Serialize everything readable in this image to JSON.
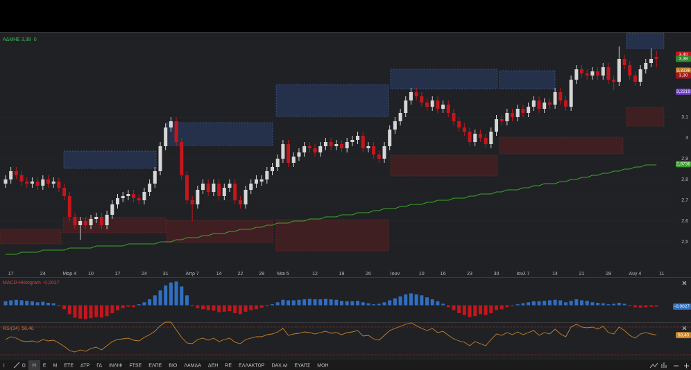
{
  "header": {
    "symbol_label": "ΑΔΜΗΕ 3,38 ·0"
  },
  "chart_data": [
    {
      "type": "candlestick",
      "categories": [
        null,
        "17",
        null,
        null,
        null,
        null,
        null,
        "24",
        null,
        null,
        null,
        null,
        "Μαρ 4",
        null,
        null,
        null,
        "10",
        null,
        null,
        null,
        null,
        "17",
        null,
        null,
        null,
        null,
        "24",
        null,
        null,
        null,
        "31",
        null,
        null,
        null,
        null,
        "Απρ 7",
        null,
        null,
        null,
        null,
        "14",
        null,
        null,
        null,
        "22",
        null,
        null,
        null,
        "28",
        null,
        null,
        null,
        "Μαι 5",
        null,
        null,
        null,
        null,
        null,
        "12",
        null,
        null,
        null,
        null,
        "19",
        null,
        null,
        null,
        null,
        "26",
        null,
        null,
        null,
        null,
        "Ιουν",
        null,
        null,
        null,
        null,
        "10",
        null,
        null,
        null,
        "16",
        null,
        null,
        null,
        null,
        "23",
        null,
        null,
        null,
        null,
        "30",
        null,
        null,
        null,
        null,
        "Ιουλ 7",
        null,
        null,
        null,
        null,
        null,
        "14",
        null,
        null,
        null,
        null,
        "21",
        null,
        null,
        null,
        null,
        "28",
        null,
        null,
        null,
        null,
        "Αυγ 4",
        null,
        null,
        null,
        null,
        "11"
      ],
      "candles": [
        [
          2.78,
          2.82,
          2.76,
          2.8
        ],
        [
          2.8,
          2.86,
          2.78,
          2.84
        ],
        [
          2.84,
          2.86,
          2.8,
          2.82
        ],
        [
          2.82,
          2.84,
          2.77,
          2.79
        ],
        [
          2.79,
          2.81,
          2.76,
          2.78
        ],
        [
          2.78,
          2.81,
          2.76,
          2.79
        ],
        [
          2.79,
          2.81,
          2.75,
          2.77
        ],
        [
          2.77,
          2.82,
          2.75,
          2.8
        ],
        [
          2.8,
          2.82,
          2.76,
          2.78
        ],
        [
          2.78,
          2.81,
          2.76,
          2.79
        ],
        [
          2.79,
          2.81,
          2.74,
          2.76
        ],
        [
          2.76,
          2.78,
          2.7,
          2.72
        ],
        [
          2.72,
          2.74,
          2.6,
          2.62
        ],
        [
          2.62,
          2.64,
          2.56,
          2.58
        ],
        [
          2.58,
          2.62,
          2.51,
          2.6
        ],
        [
          2.6,
          2.62,
          2.56,
          2.58
        ],
        [
          2.58,
          2.63,
          2.56,
          2.61
        ],
        [
          2.61,
          2.64,
          2.59,
          2.62
        ],
        [
          2.62,
          2.64,
          2.56,
          2.58
        ],
        [
          2.58,
          2.65,
          2.56,
          2.63
        ],
        [
          2.63,
          2.7,
          2.61,
          2.68
        ],
        [
          2.68,
          2.73,
          2.66,
          2.71
        ],
        [
          2.71,
          2.74,
          2.69,
          2.72
        ],
        [
          2.72,
          2.75,
          2.7,
          2.73
        ],
        [
          2.73,
          2.75,
          2.69,
          2.71
        ],
        [
          2.71,
          2.73,
          2.68,
          2.7
        ],
        [
          2.7,
          2.76,
          2.68,
          2.74
        ],
        [
          2.74,
          2.8,
          2.72,
          2.78
        ],
        [
          2.78,
          2.86,
          2.76,
          2.84
        ],
        [
          2.84,
          2.98,
          2.82,
          2.96
        ],
        [
          2.96,
          3.07,
          2.94,
          3.05
        ],
        [
          3.05,
          3.1,
          3.03,
          3.08
        ],
        [
          3.08,
          3.1,
          2.96,
          2.98
        ],
        [
          2.98,
          3.0,
          2.8,
          2.82
        ],
        [
          2.82,
          2.84,
          2.68,
          2.7
        ],
        [
          2.7,
          2.72,
          2.6,
          2.68
        ],
        [
          2.68,
          2.77,
          2.66,
          2.75
        ],
        [
          2.75,
          2.8,
          2.73,
          2.78
        ],
        [
          2.78,
          2.8,
          2.72,
          2.74
        ],
        [
          2.74,
          2.8,
          2.72,
          2.78
        ],
        [
          2.78,
          2.8,
          2.7,
          2.72
        ],
        [
          2.72,
          2.78,
          2.7,
          2.76
        ],
        [
          2.76,
          2.8,
          2.74,
          2.78
        ],
        [
          2.78,
          2.8,
          2.68,
          2.7
        ],
        [
          2.7,
          2.72,
          2.66,
          2.68
        ],
        [
          2.68,
          2.77,
          2.66,
          2.75
        ],
        [
          2.75,
          2.8,
          2.73,
          2.78
        ],
        [
          2.78,
          2.82,
          2.76,
          2.8
        ],
        [
          2.79,
          2.82,
          2.77,
          2.8
        ],
        [
          2.8,
          2.86,
          2.78,
          2.84
        ],
        [
          2.84,
          2.88,
          2.82,
          2.86
        ],
        [
          2.86,
          2.92,
          2.84,
          2.9
        ],
        [
          2.9,
          2.99,
          2.88,
          2.97
        ],
        [
          2.97,
          2.99,
          2.86,
          2.88
        ],
        [
          2.88,
          2.93,
          2.86,
          2.91
        ],
        [
          2.91,
          2.95,
          2.89,
          2.93
        ],
        [
          2.93,
          2.98,
          2.91,
          2.96
        ],
        [
          2.96,
          2.98,
          2.93,
          2.95
        ],
        [
          2.95,
          2.97,
          2.91,
          2.93
        ],
        [
          2.93,
          2.98,
          2.91,
          2.96
        ],
        [
          2.96,
          3.0,
          2.94,
          2.98
        ],
        [
          2.98,
          3.0,
          2.94,
          2.96
        ],
        [
          2.96,
          2.99,
          2.94,
          2.97
        ],
        [
          2.97,
          2.99,
          2.93,
          2.95
        ],
        [
          2.95,
          3.0,
          2.93,
          2.98
        ],
        [
          2.98,
          3.01,
          2.96,
          2.99
        ],
        [
          2.99,
          3.03,
          2.97,
          3.01
        ],
        [
          3.01,
          3.03,
          2.93,
          2.95
        ],
        [
          2.95,
          2.98,
          2.93,
          2.96
        ],
        [
          2.96,
          2.98,
          2.9,
          2.92
        ],
        [
          2.92,
          2.94,
          2.88,
          2.9
        ],
        [
          2.9,
          2.98,
          2.88,
          2.96
        ],
        [
          2.96,
          3.06,
          2.94,
          3.04
        ],
        [
          3.04,
          3.1,
          3.02,
          3.08
        ],
        [
          3.08,
          3.14,
          3.06,
          3.12
        ],
        [
          3.12,
          3.2,
          3.1,
          3.18
        ],
        [
          3.18,
          3.24,
          3.16,
          3.22
        ],
        [
          3.22,
          3.24,
          3.18,
          3.2
        ],
        [
          3.2,
          3.22,
          3.15,
          3.17
        ],
        [
          3.17,
          3.19,
          3.13,
          3.15
        ],
        [
          3.15,
          3.2,
          3.13,
          3.18
        ],
        [
          3.18,
          3.2,
          3.12,
          3.14
        ],
        [
          3.14,
          3.18,
          3.12,
          3.16
        ],
        [
          3.16,
          3.18,
          3.1,
          3.12
        ],
        [
          3.12,
          3.14,
          3.06,
          3.08
        ],
        [
          3.08,
          3.1,
          3.03,
          3.05
        ],
        [
          3.05,
          3.07,
          3.01,
          3.03
        ],
        [
          3.03,
          3.05,
          2.96,
          2.98
        ],
        [
          2.98,
          3.04,
          2.96,
          3.02
        ],
        [
          3.02,
          3.04,
          2.98,
          3.0
        ],
        [
          3.0,
          3.02,
          2.95,
          2.97
        ],
        [
          2.97,
          3.05,
          2.95,
          3.03
        ],
        [
          3.03,
          3.11,
          3.01,
          3.09
        ],
        [
          3.09,
          3.11,
          3.06,
          3.08
        ],
        [
          3.08,
          3.14,
          3.06,
          3.12
        ],
        [
          3.12,
          3.14,
          3.08,
          3.1
        ],
        [
          3.1,
          3.16,
          3.08,
          3.14
        ],
        [
          3.14,
          3.16,
          3.1,
          3.12
        ],
        [
          3.12,
          3.17,
          3.1,
          3.15
        ],
        [
          3.15,
          3.2,
          3.13,
          3.18
        ],
        [
          3.18,
          3.2,
          3.12,
          3.14
        ],
        [
          3.14,
          3.19,
          3.12,
          3.17
        ],
        [
          3.17,
          3.19,
          3.14,
          3.16
        ],
        [
          3.16,
          3.24,
          3.14,
          3.22
        ],
        [
          3.22,
          3.24,
          3.16,
          3.18
        ],
        [
          3.18,
          3.2,
          3.13,
          3.15
        ],
        [
          3.15,
          3.3,
          3.13,
          3.28
        ],
        [
          3.28,
          3.35,
          3.26,
          3.33
        ],
        [
          3.33,
          3.35,
          3.29,
          3.31
        ],
        [
          3.31,
          3.33,
          3.28,
          3.3
        ],
        [
          3.3,
          3.34,
          3.28,
          3.32
        ],
        [
          3.32,
          3.34,
          3.28,
          3.3
        ],
        [
          3.3,
          3.36,
          3.28,
          3.34
        ],
        [
          3.34,
          3.36,
          3.26,
          3.28
        ],
        [
          3.28,
          3.3,
          3.23,
          3.27
        ],
        [
          3.27,
          3.44,
          3.25,
          3.38
        ],
        [
          3.38,
          3.4,
          3.33,
          3.35
        ],
        [
          3.35,
          3.37,
          3.28,
          3.3
        ],
        [
          3.3,
          3.32,
          3.25,
          3.27
        ],
        [
          3.27,
          3.35,
          3.25,
          3.33
        ],
        [
          3.33,
          3.38,
          3.31,
          3.36
        ],
        [
          3.36,
          3.43,
          3.34,
          3.38
        ],
        [
          3.39,
          3.42,
          3.34,
          3.38
        ]
      ],
      "up_color": "#d6d6d6",
      "down_color": "#c4161d",
      "ylim": [
        2.37,
        3.51
      ],
      "yticks": [
        {
          "value": 3.1,
          "label": "3,1"
        },
        3,
        {
          "value": 2.9,
          "label": "2,9"
        },
        {
          "value": 2.8,
          "label": "2,8"
        },
        {
          "value": 2.7,
          "label": "2,7"
        },
        {
          "value": 2.6,
          "label": "2,6"
        },
        {
          "value": 2.5,
          "label": "2,5"
        }
      ],
      "moving_average": {
        "color": "#3aa82a",
        "values": [
          2.44,
          2.44,
          2.44,
          2.45,
          2.45,
          2.45,
          2.45,
          2.46,
          2.46,
          2.46,
          2.46,
          2.46,
          2.47,
          2.47,
          2.47,
          2.47,
          2.47,
          2.48,
          2.48,
          2.48,
          2.48,
          2.48,
          2.48,
          2.49,
          2.49,
          2.49,
          2.49,
          2.49,
          2.49,
          2.5,
          2.5,
          2.5,
          2.51,
          2.51,
          2.52,
          2.52,
          2.52,
          2.53,
          2.53,
          2.54,
          2.54,
          2.54,
          2.55,
          2.55,
          2.56,
          2.56,
          2.56,
          2.57,
          2.57,
          2.58,
          2.58,
          2.59,
          2.59,
          2.59,
          2.6,
          2.6,
          2.6,
          2.61,
          2.61,
          2.61,
          2.62,
          2.62,
          2.62,
          2.63,
          2.63,
          2.63,
          2.64,
          2.64,
          2.64,
          2.65,
          2.65,
          2.66,
          2.66,
          2.66,
          2.67,
          2.67,
          2.68,
          2.68,
          2.68,
          2.69,
          2.69,
          2.7,
          2.7,
          2.7,
          2.71,
          2.71,
          2.71,
          2.72,
          2.72,
          2.73,
          2.73,
          2.73,
          2.74,
          2.74,
          2.75,
          2.75,
          2.75,
          2.76,
          2.76,
          2.77,
          2.77,
          2.78,
          2.78,
          2.78,
          2.79,
          2.79,
          2.8,
          2.8,
          2.81,
          2.81,
          2.82,
          2.82,
          2.83,
          2.83,
          2.84,
          2.84,
          2.85,
          2.85,
          2.86,
          2.86,
          2.87,
          2.87,
          2.87
        ]
      },
      "price_markers": [
        {
          "value": 3.4,
          "label": "3,40",
          "color": "#c4161d"
        },
        {
          "value": 3.38,
          "label": "3,38",
          "color": "#2e8b2e"
        },
        {
          "value": 3.3238,
          "label": "3,3238",
          "color": "#b8741a"
        },
        {
          "value": 3.3,
          "label": "3,30",
          "color": "#a3161d"
        },
        {
          "value": 3.2219,
          "label": "3,2219",
          "color": "#6a3fc9"
        },
        {
          "value": 2.8738,
          "label": "2,8738",
          "color": "#3a9a2a"
        }
      ]
    },
    {
      "type": "histogram",
      "title": "MACD-Histogram",
      "last": {
        "value": -0.0027,
        "label": "-0,0027"
      },
      "pos_color": "#2f6fc2",
      "neg_color": "#c4161d",
      "ylim": [
        -0.03,
        0.054
      ],
      "values": [
        0.008,
        0.01,
        0.011,
        0.01,
        0.009,
        0.008,
        0.006,
        0.007,
        0.005,
        0.004,
        -0.002,
        -0.008,
        -0.018,
        -0.025,
        -0.027,
        -0.028,
        -0.026,
        -0.024,
        -0.025,
        -0.022,
        -0.016,
        -0.01,
        -0.006,
        -0.003,
        -0.004,
        0.002,
        0.006,
        0.012,
        0.02,
        0.03,
        0.04,
        0.046,
        0.048,
        0.038,
        0.02,
        -0.002,
        -0.006,
        -0.008,
        -0.01,
        -0.011,
        -0.014,
        -0.013,
        -0.012,
        -0.016,
        -0.018,
        -0.013,
        -0.01,
        -0.008,
        -0.005,
        -0.002,
        0.002,
        0.006,
        0.011,
        0.01,
        0.01,
        0.011,
        0.012,
        0.013,
        0.012,
        0.012,
        0.013,
        0.012,
        0.011,
        0.009,
        0.008,
        0.008,
        0.009,
        0.006,
        0.004,
        0.002,
        0.003,
        0.006,
        0.01,
        0.014,
        0.018,
        0.022,
        0.024,
        0.022,
        0.02,
        0.016,
        0.012,
        0.008,
        0.003,
        -0.004,
        -0.01,
        -0.016,
        -0.02,
        -0.024,
        -0.022,
        -0.018,
        -0.02,
        -0.016,
        -0.01,
        -0.008,
        -0.004,
        -0.002,
        0.002,
        0.004,
        0.006,
        0.008,
        0.008,
        0.009,
        0.01,
        0.011,
        0.01,
        0.006,
        0.009,
        0.012,
        0.01,
        0.009,
        0.006,
        0.005,
        0.004,
        0.002,
        0.003,
        0.005,
        0.003,
        -0.002,
        -0.004,
        -0.005,
        -0.004,
        -0.003,
        -0.0027
      ]
    },
    {
      "type": "line",
      "title": "RSI(14)",
      "last": {
        "value": 58.4,
        "label": "58,40"
      },
      "color": "#c9842a",
      "level_color": "#8a2a22",
      "ylim": [
        24,
        76
      ],
      "levels": [
        70,
        30
      ],
      "values": [
        52,
        56,
        54,
        50,
        49,
        50,
        48,
        52,
        50,
        51,
        47,
        42,
        36,
        34,
        37,
        35,
        39,
        41,
        37,
        43,
        49,
        52,
        53,
        54,
        51,
        50,
        55,
        59,
        64,
        72,
        77,
        77,
        66,
        55,
        47,
        46,
        52,
        54,
        51,
        54,
        49,
        52,
        54,
        48,
        46,
        52,
        54,
        56,
        56,
        59,
        60,
        63,
        68,
        58,
        60,
        61,
        63,
        62,
        60,
        62,
        64,
        61,
        62,
        59,
        62,
        63,
        65,
        57,
        58,
        53,
        51,
        58,
        65,
        68,
        71,
        74,
        76,
        72,
        68,
        65,
        68,
        62,
        64,
        58,
        53,
        50,
        48,
        43,
        49,
        46,
        43,
        52,
        60,
        58,
        62,
        59,
        63,
        59,
        62,
        65,
        58,
        62,
        60,
        67,
        60,
        56,
        70,
        74,
        70,
        69,
        70,
        67,
        71,
        62,
        60,
        70,
        65,
        58,
        54,
        60,
        62,
        60,
        58.4
      ]
    }
  ],
  "toolbar": {
    "items": [
      "i",
      "Ω",
      "Η",
      "Ε",
      "Μ",
      "ΕΤΕ",
      "ΔΤΡ",
      "ΓΔ",
      "ΙΝΛΙΦ",
      "FTSE",
      "ΕΛΠΕ",
      "ΒΙΟ",
      "ΛΑΜΔΑ",
      "ΔΕΗ",
      "RE",
      "ΕΛΛΑΚΤΩΡ",
      "DAX.wi",
      "ΕΥΑΠΣ",
      "ΜΟΗ"
    ],
    "active": "Η"
  }
}
